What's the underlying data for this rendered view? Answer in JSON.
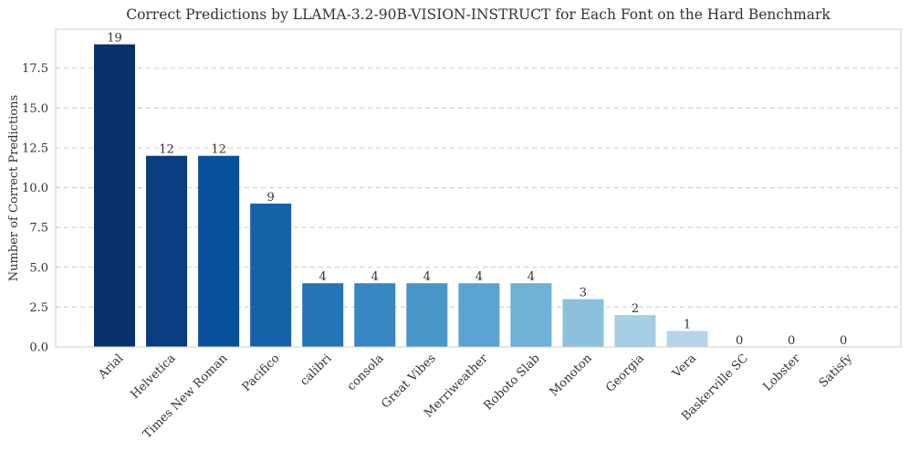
{
  "chart_data": {
    "type": "bar",
    "title": "Correct Predictions by LLAMA-3.2-90B-VISION-INSTRUCT for Each Font on the Hard Benchmark",
    "xlabel": "",
    "ylabel": "Number of Correct Predictions",
    "ylim": [
      0,
      19.95
    ],
    "yticks": [
      "0.0",
      "2.5",
      "5.0",
      "7.5",
      "10.0",
      "12.5",
      "15.0",
      "17.5"
    ],
    "ytick_values": [
      0,
      2.5,
      5,
      7.5,
      10,
      12.5,
      15,
      17.5
    ],
    "grid": true,
    "categories": [
      "Arial",
      "Helvetica",
      "Times New Roman",
      "Pacifico",
      "calibri",
      "consola",
      "Great Vibes",
      "Merriweather",
      "Roboto Slab",
      "Monoton",
      "Georgia",
      "Vera",
      "Baskerville SC",
      "Lobster",
      "Satisfy"
    ],
    "values": [
      19,
      12,
      12,
      9,
      4,
      4,
      4,
      4,
      4,
      3,
      2,
      1,
      0,
      0,
      0
    ],
    "data_labels": [
      "19",
      "12",
      "12",
      "9",
      "4",
      "4",
      "4",
      "4",
      "4",
      "3",
      "2",
      "1",
      "0",
      "0",
      "0"
    ],
    "colors": [
      "#08306b",
      "#083d7f",
      "#08509b",
      "#1562a9",
      "#2474b7",
      "#3787c0",
      "#4896c8",
      "#5ba3d0",
      "#6fb0d7",
      "#8cc0dd",
      "#a5cde3",
      "#b5d4e9",
      "#c6dbef",
      "#d2e3f3",
      "#dce9f6"
    ]
  }
}
